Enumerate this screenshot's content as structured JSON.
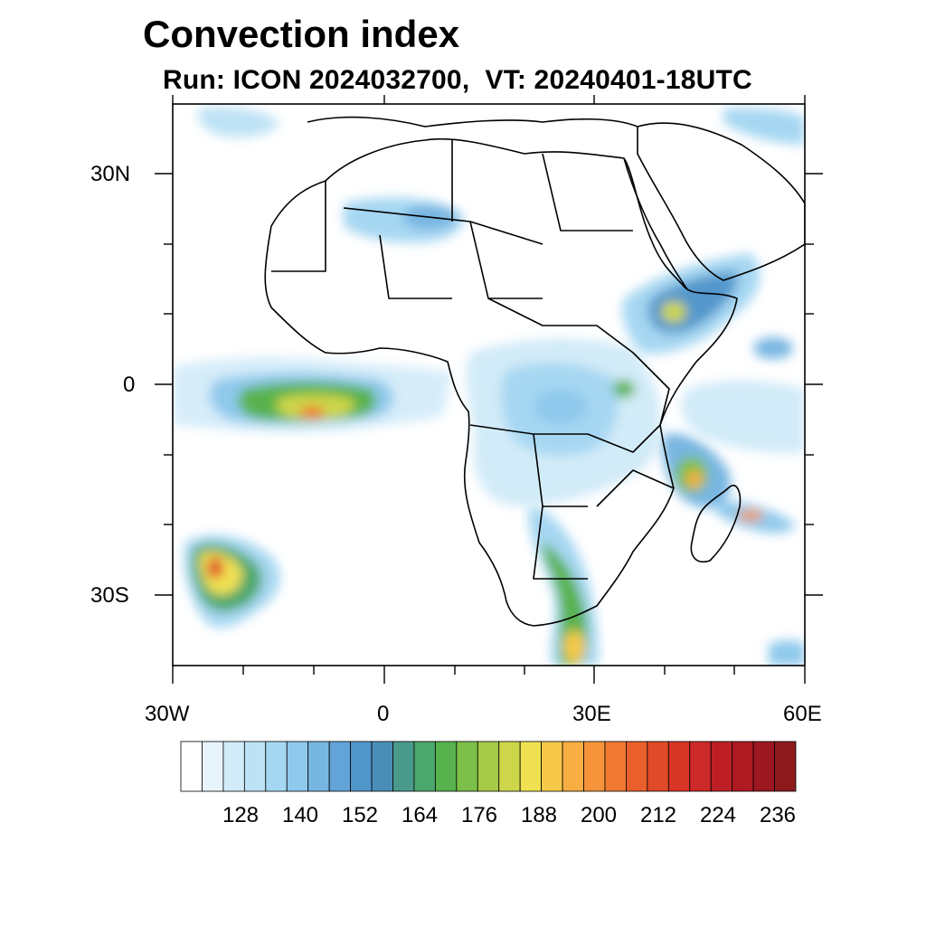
{
  "title": "Convection index",
  "subtitle": "Run: ICON 2024032700,  VT: 20240401-18UTC",
  "axes": {
    "lat_labels": [
      "30N",
      "0",
      "30S"
    ],
    "lon_labels": [
      "30W",
      "0",
      "30E",
      "60E"
    ]
  },
  "colorbar": {
    "labels": [
      "128",
      "140",
      "152",
      "164",
      "176",
      "188",
      "200",
      "212",
      "224",
      "236"
    ],
    "colors": [
      "#ffffff",
      "#e8f4fb",
      "#d2ebf8",
      "#bde2f5",
      "#a6d7f2",
      "#8fc9ec",
      "#78b6e2",
      "#62a3d8",
      "#5297cc",
      "#4a8eb8",
      "#4a9a8c",
      "#4ca76c",
      "#58b24e",
      "#7cbf4a",
      "#a6cb48",
      "#cdd64a",
      "#efe152",
      "#f7c94a",
      "#f7ae42",
      "#f5943a",
      "#f07a32",
      "#e9602c",
      "#e04a28",
      "#d73526",
      "#cc2a28",
      "#be1f26",
      "#ad1a22",
      "#9c1820",
      "#8c1a1c"
    ]
  },
  "map": {
    "land_color": "#ffffff",
    "border_color": "#000000"
  }
}
